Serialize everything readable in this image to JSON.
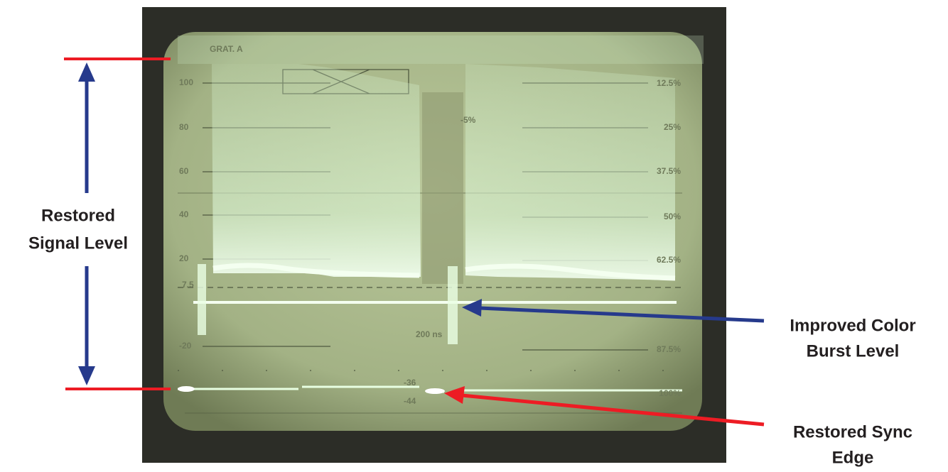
{
  "screen": {
    "graticule_name": "GRAT. A",
    "left_scale": [
      "100",
      "80",
      "60",
      "40",
      "20",
      "-20"
    ],
    "right_scale": [
      "12.5%",
      "25%",
      "37.5%",
      "50%",
      "62.5%",
      "87.5%",
      "100%"
    ],
    "setup_level": "7.5",
    "sync_marks": [
      "-36",
      "-44"
    ],
    "timing_mark": "200 ns",
    "phase_mark": "-5%"
  },
  "annotations": [
    {
      "lines": [
        "Restored",
        "Signal Level"
      ]
    },
    {
      "lines": [
        "Improved Color",
        "Burst Level"
      ]
    },
    {
      "lines": [
        "Restored Sync",
        "Edge"
      ]
    }
  ]
}
